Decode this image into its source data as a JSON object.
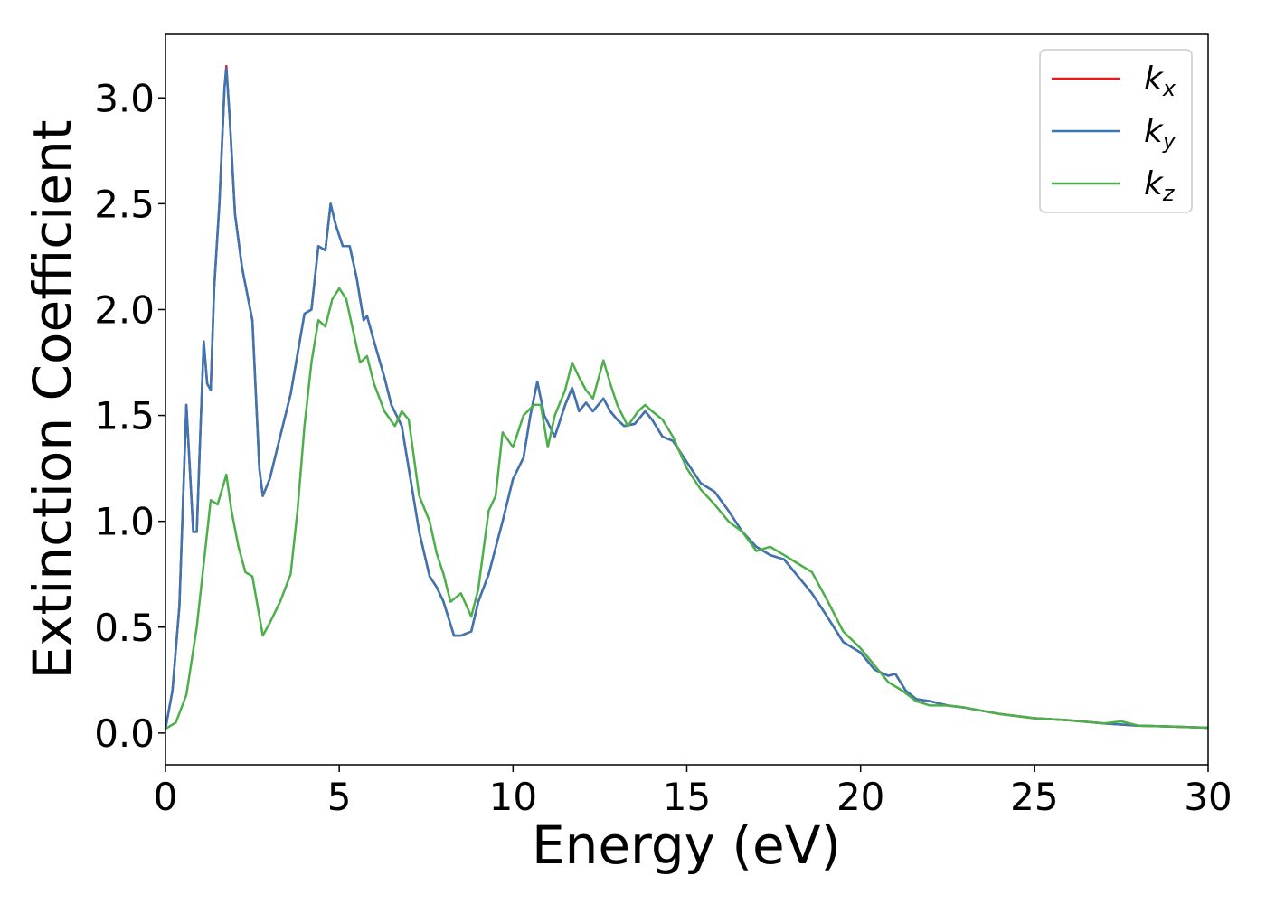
{
  "chart_data": {
    "type": "line",
    "xlabel": "Energy (eV)",
    "ylabel": "Extinction Coefficient",
    "xlim": [
      0,
      30
    ],
    "ylim": [
      -0.15,
      3.3
    ],
    "xticks": [
      "0",
      "5",
      "10",
      "15",
      "20",
      "25",
      "30"
    ],
    "yticks": [
      "0.0",
      "0.5",
      "1.0",
      "1.5",
      "2.0",
      "2.5",
      "3.0"
    ],
    "grid": false,
    "legend_position": "top-right",
    "series": [
      {
        "name": "k_x",
        "label_main": "k",
        "label_sub": "x",
        "color": "#e41a1c",
        "x": [
          0,
          0.2,
          0.4,
          0.6,
          0.8,
          0.9,
          1.0,
          1.1,
          1.2,
          1.3,
          1.4,
          1.55,
          1.7,
          1.75,
          1.85,
          2.0,
          2.2,
          2.5,
          2.7,
          2.8,
          3.0,
          3.3,
          3.6,
          4.0,
          4.2,
          4.4,
          4.6,
          4.75,
          4.9,
          5.1,
          5.3,
          5.5,
          5.7,
          5.8,
          6.0,
          6.3,
          6.5,
          6.8,
          7.0,
          7.3,
          7.6,
          7.8,
          8.0,
          8.3,
          8.5,
          8.8,
          9.0,
          9.3,
          9.7,
          10.0,
          10.3,
          10.5,
          10.7,
          10.9,
          11.2,
          11.5,
          11.7,
          11.9,
          12.1,
          12.3,
          12.6,
          12.8,
          13.0,
          13.2,
          13.5,
          13.8,
          14.0,
          14.3,
          14.6,
          15.0,
          15.4,
          15.8,
          16.2,
          16.6,
          17.0,
          17.4,
          17.8,
          18.2,
          18.6,
          19.0,
          19.5,
          20.0,
          20.4,
          20.8,
          21.0,
          21.3,
          21.6,
          22.0,
          22.5,
          23.0,
          24.0,
          25.0,
          26.0,
          27.0,
          28.0,
          29.0,
          30.0
        ],
        "y": [
          0.02,
          0.2,
          0.6,
          1.55,
          0.95,
          0.95,
          1.4,
          1.85,
          1.65,
          1.62,
          2.1,
          2.5,
          3.05,
          3.15,
          2.9,
          2.45,
          2.2,
          1.95,
          1.25,
          1.12,
          1.2,
          1.4,
          1.6,
          1.98,
          2.0,
          2.3,
          2.28,
          2.5,
          2.4,
          2.3,
          2.3,
          2.15,
          1.95,
          1.97,
          1.85,
          1.68,
          1.55,
          1.45,
          1.25,
          0.95,
          0.74,
          0.69,
          0.62,
          0.46,
          0.46,
          0.48,
          0.62,
          0.75,
          1.0,
          1.2,
          1.3,
          1.5,
          1.66,
          1.5,
          1.4,
          1.55,
          1.63,
          1.52,
          1.56,
          1.52,
          1.58,
          1.52,
          1.48,
          1.45,
          1.46,
          1.52,
          1.48,
          1.4,
          1.38,
          1.28,
          1.18,
          1.14,
          1.05,
          0.95,
          0.88,
          0.84,
          0.82,
          0.74,
          0.66,
          0.56,
          0.43,
          0.38,
          0.3,
          0.27,
          0.28,
          0.2,
          0.16,
          0.15,
          0.13,
          0.12,
          0.09,
          0.07,
          0.06,
          0.045,
          0.035,
          0.03,
          0.025
        ]
      },
      {
        "name": "k_y",
        "label_main": "k",
        "label_sub": "y",
        "color": "#3a76b3",
        "x": [
          0,
          0.2,
          0.4,
          0.6,
          0.8,
          0.9,
          1.0,
          1.1,
          1.2,
          1.3,
          1.4,
          1.55,
          1.7,
          1.75,
          1.85,
          2.0,
          2.2,
          2.5,
          2.7,
          2.8,
          3.0,
          3.3,
          3.6,
          4.0,
          4.2,
          4.4,
          4.6,
          4.75,
          4.9,
          5.1,
          5.3,
          5.5,
          5.7,
          5.8,
          6.0,
          6.3,
          6.5,
          6.8,
          7.0,
          7.3,
          7.6,
          7.8,
          8.0,
          8.3,
          8.5,
          8.8,
          9.0,
          9.3,
          9.7,
          10.0,
          10.3,
          10.5,
          10.7,
          10.9,
          11.2,
          11.5,
          11.7,
          11.9,
          12.1,
          12.3,
          12.6,
          12.8,
          13.0,
          13.2,
          13.5,
          13.8,
          14.0,
          14.3,
          14.6,
          15.0,
          15.4,
          15.8,
          16.2,
          16.6,
          17.0,
          17.4,
          17.8,
          18.2,
          18.6,
          19.0,
          19.5,
          20.0,
          20.4,
          20.8,
          21.0,
          21.3,
          21.6,
          22.0,
          22.5,
          23.0,
          24.0,
          25.0,
          26.0,
          27.0,
          28.0,
          29.0,
          30.0
        ],
        "y": [
          0.02,
          0.2,
          0.6,
          1.55,
          0.95,
          0.95,
          1.4,
          1.85,
          1.65,
          1.62,
          2.1,
          2.5,
          3.05,
          3.14,
          2.9,
          2.45,
          2.2,
          1.95,
          1.25,
          1.12,
          1.2,
          1.4,
          1.6,
          1.98,
          2.0,
          2.3,
          2.28,
          2.5,
          2.4,
          2.3,
          2.3,
          2.15,
          1.95,
          1.97,
          1.85,
          1.68,
          1.55,
          1.45,
          1.25,
          0.95,
          0.74,
          0.69,
          0.62,
          0.46,
          0.46,
          0.48,
          0.62,
          0.75,
          1.0,
          1.2,
          1.3,
          1.5,
          1.66,
          1.5,
          1.4,
          1.55,
          1.63,
          1.52,
          1.56,
          1.52,
          1.58,
          1.52,
          1.48,
          1.45,
          1.46,
          1.52,
          1.48,
          1.4,
          1.38,
          1.28,
          1.18,
          1.14,
          1.05,
          0.95,
          0.88,
          0.84,
          0.82,
          0.74,
          0.66,
          0.56,
          0.43,
          0.38,
          0.3,
          0.27,
          0.28,
          0.2,
          0.16,
          0.15,
          0.13,
          0.12,
          0.09,
          0.07,
          0.06,
          0.045,
          0.035,
          0.03,
          0.025
        ]
      },
      {
        "name": "k_z",
        "label_main": "k",
        "label_sub": "z",
        "color": "#4daf4a",
        "x": [
          0,
          0.3,
          0.6,
          0.9,
          1.1,
          1.3,
          1.5,
          1.75,
          1.9,
          2.1,
          2.3,
          2.5,
          2.8,
          3.0,
          3.3,
          3.6,
          3.8,
          4.0,
          4.2,
          4.4,
          4.6,
          4.8,
          5.0,
          5.2,
          5.4,
          5.6,
          5.8,
          6.0,
          6.3,
          6.6,
          6.8,
          7.0,
          7.3,
          7.6,
          7.8,
          8.0,
          8.2,
          8.5,
          8.8,
          9.0,
          9.3,
          9.5,
          9.7,
          10.0,
          10.3,
          10.6,
          10.8,
          11.0,
          11.2,
          11.5,
          11.7,
          11.9,
          12.1,
          12.3,
          12.6,
          12.8,
          13.0,
          13.3,
          13.6,
          13.8,
          14.0,
          14.3,
          14.6,
          15.0,
          15.4,
          15.8,
          16.2,
          16.6,
          17.0,
          17.4,
          17.8,
          18.2,
          18.6,
          19.0,
          19.5,
          20.0,
          20.4,
          20.8,
          21.2,
          21.6,
          22.0,
          22.5,
          23.0,
          24.0,
          25.0,
          26.0,
          27.0,
          27.5,
          28.0,
          29.0,
          30.0
        ],
        "y": [
          0.02,
          0.05,
          0.18,
          0.5,
          0.8,
          1.1,
          1.08,
          1.22,
          1.05,
          0.88,
          0.76,
          0.74,
          0.46,
          0.52,
          0.62,
          0.75,
          1.05,
          1.45,
          1.75,
          1.95,
          1.92,
          2.05,
          2.1,
          2.05,
          1.9,
          1.75,
          1.78,
          1.65,
          1.52,
          1.45,
          1.52,
          1.48,
          1.12,
          1.0,
          0.85,
          0.75,
          0.62,
          0.66,
          0.55,
          0.68,
          1.05,
          1.12,
          1.42,
          1.35,
          1.5,
          1.55,
          1.55,
          1.35,
          1.5,
          1.62,
          1.75,
          1.68,
          1.62,
          1.58,
          1.76,
          1.65,
          1.55,
          1.45,
          1.52,
          1.55,
          1.52,
          1.48,
          1.4,
          1.25,
          1.15,
          1.08,
          1.0,
          0.95,
          0.86,
          0.88,
          0.84,
          0.8,
          0.76,
          0.64,
          0.48,
          0.4,
          0.32,
          0.24,
          0.2,
          0.15,
          0.13,
          0.13,
          0.12,
          0.09,
          0.07,
          0.06,
          0.045,
          0.055,
          0.035,
          0.03,
          0.025
        ]
      }
    ]
  }
}
